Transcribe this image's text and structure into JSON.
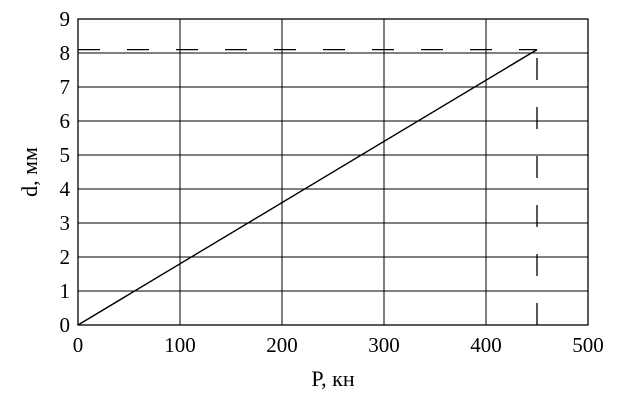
{
  "chart_data": {
    "type": "line",
    "title": "",
    "xlabel": "P, кн",
    "ylabel": "d, мм",
    "xlim": [
      0,
      500
    ],
    "ylim": [
      0,
      9
    ],
    "x_ticks": [
      0,
      100,
      200,
      300,
      400,
      500
    ],
    "y_ticks": [
      0,
      1,
      2,
      3,
      4,
      5,
      6,
      7,
      8,
      9
    ],
    "x_tick_labels": [
      "0",
      "100",
      "200",
      "300",
      "400",
      "500"
    ],
    "y_tick_labels": [
      "0",
      "1",
      "2",
      "3",
      "4",
      "5",
      "6",
      "7",
      "8",
      "9"
    ],
    "grid": true,
    "series": [
      {
        "x": [
          0,
          450
        ],
        "y": [
          0,
          8.1
        ],
        "style": "solid"
      }
    ],
    "reference_lines": [
      {
        "x": [
          0,
          450
        ],
        "y": [
          8.1,
          8.1
        ],
        "style": "dashed"
      },
      {
        "x": [
          450,
          450
        ],
        "y": [
          0,
          8.1
        ],
        "style": "dashed"
      }
    ],
    "colors": {
      "line": "#000000",
      "grid": "#000000"
    }
  }
}
